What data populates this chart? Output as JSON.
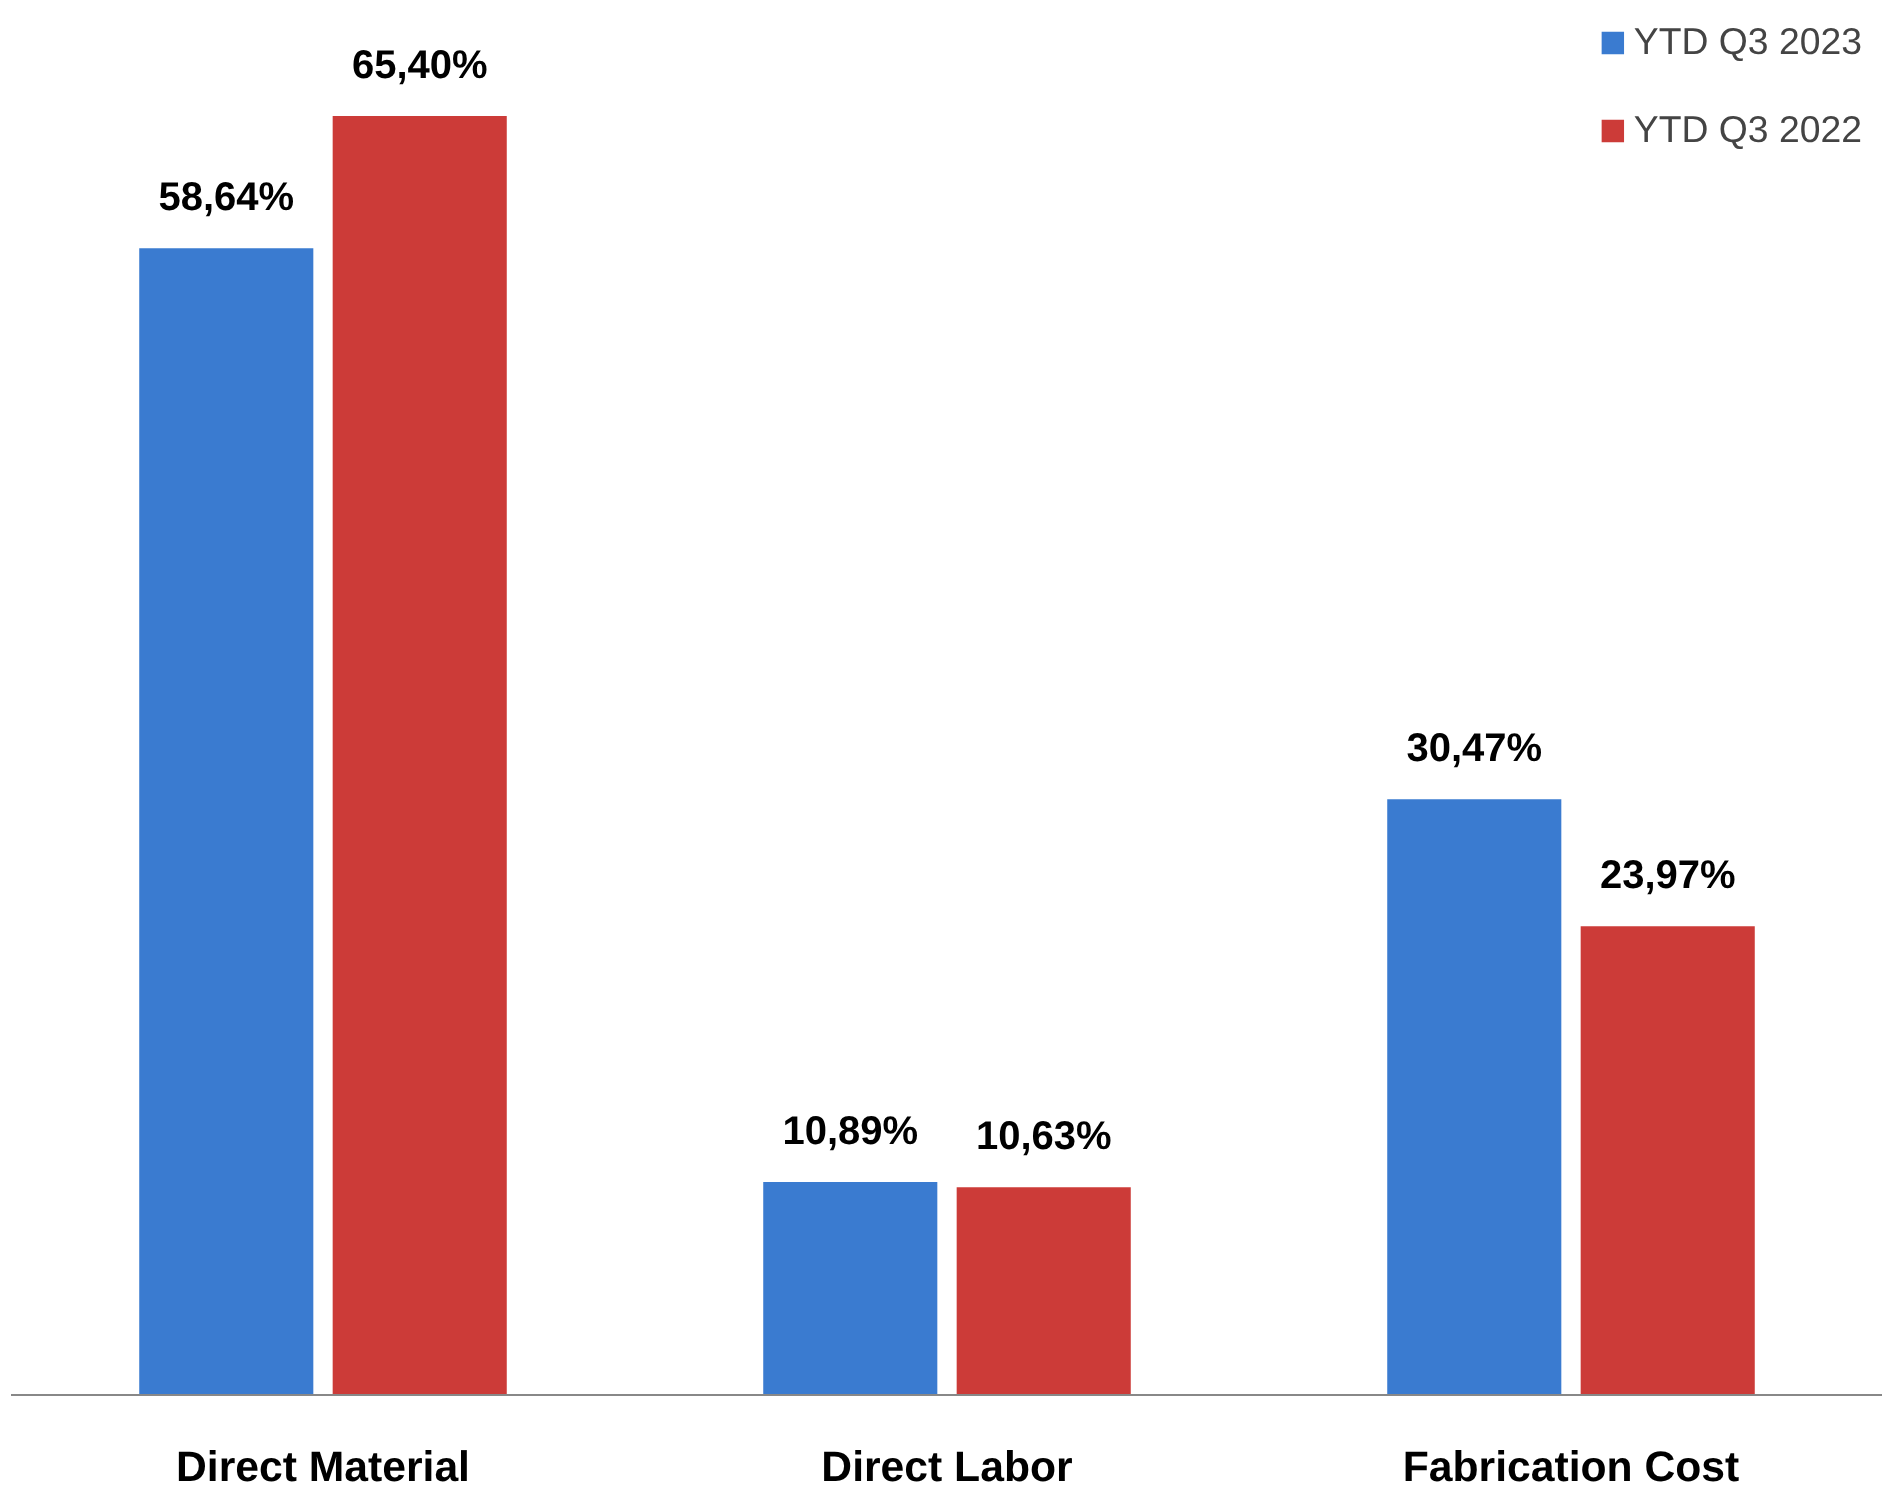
{
  "chart_data": {
    "type": "bar",
    "categories": [
      "Direct Material",
      "Direct Labor",
      "Fabrication Cost"
    ],
    "series": [
      {
        "name": "YTD Q3 2023",
        "color": "#3a7bd0",
        "values": [
          58.64,
          10.89,
          30.47
        ],
        "value_labels": [
          "58,64%",
          "10,89%",
          "30,47%"
        ]
      },
      {
        "name": "YTD Q3 2022",
        "color": "#cc3b38",
        "values": [
          65.4,
          10.63,
          23.97
        ],
        "value_labels": [
          "65,40%",
          "10,63%",
          "23,97%"
        ]
      }
    ],
    "legend": "top right",
    "grid": false
  }
}
